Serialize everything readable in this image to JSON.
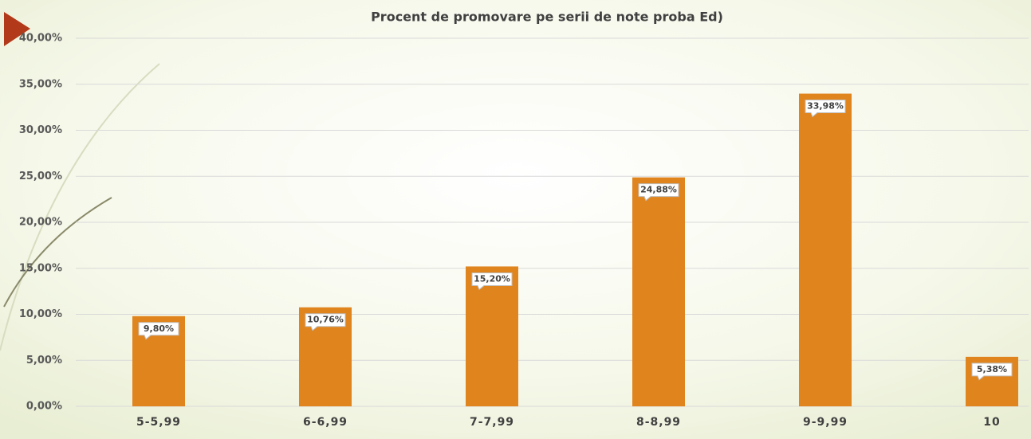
{
  "chart_data": {
    "type": "bar",
    "title": "Procent de promovare pe serii de note proba Ed)",
    "categories": [
      "5-5,99",
      "6-6,99",
      "7-7,99",
      "8-8,99",
      "9-9,99",
      "10"
    ],
    "values": [
      9.8,
      10.76,
      15.2,
      24.88,
      33.98,
      5.38
    ],
    "value_labels": [
      "9,80%",
      "10,76%",
      "15,20%",
      "24,88%",
      "33,98%",
      "5,38%"
    ],
    "color": "#e0841e",
    "ylim": [
      0,
      40
    ],
    "yticks": [
      {
        "value": 0,
        "label": "0,00%"
      },
      {
        "value": 5,
        "label": "5,00%"
      },
      {
        "value": 10,
        "label": "10,00%"
      },
      {
        "value": 15,
        "label": "15,00%"
      },
      {
        "value": 20,
        "label": "20,00%"
      },
      {
        "value": 25,
        "label": "25,00%"
      },
      {
        "value": 30,
        "label": "30,00%"
      },
      {
        "value": 35,
        "label": "35,00%"
      },
      {
        "value": 40,
        "label": "40,00%"
      }
    ],
    "grid": true
  }
}
